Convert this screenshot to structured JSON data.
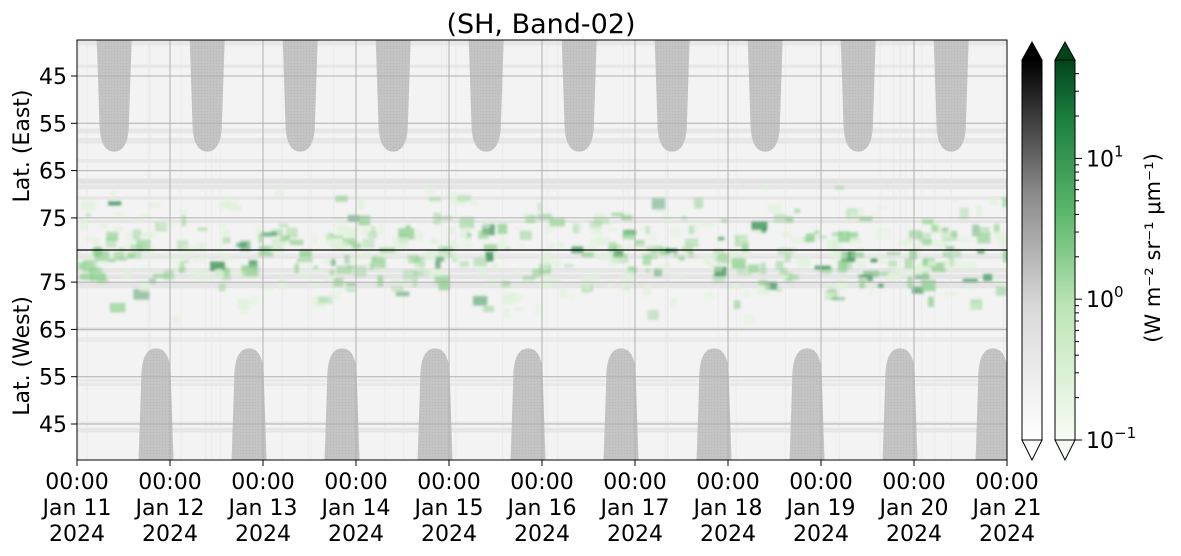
{
  "chart_data": {
    "type": "heatmap",
    "title": "(SH, Band-02)",
    "x": {
      "range": [
        "2024-01-11 00:00",
        "2024-01-21 00:00"
      ],
      "ticks": [
        {
          "time": "00:00",
          "date": "Jan 11",
          "year": "2024"
        },
        {
          "time": "00:00",
          "date": "Jan 12",
          "year": "2024"
        },
        {
          "time": "00:00",
          "date": "Jan 13",
          "year": "2024"
        },
        {
          "time": "00:00",
          "date": "Jan 14",
          "year": "2024"
        },
        {
          "time": "00:00",
          "date": "Jan 15",
          "year": "2024"
        },
        {
          "time": "00:00",
          "date": "Jan 16",
          "year": "2024"
        },
        {
          "time": "00:00",
          "date": "Jan 17",
          "year": "2024"
        },
        {
          "time": "00:00",
          "date": "Jan 18",
          "year": "2024"
        },
        {
          "time": "00:00",
          "date": "Jan 19",
          "year": "2024"
        },
        {
          "time": "00:00",
          "date": "Jan 20",
          "year": "2024"
        },
        {
          "time": "00:00",
          "date": "Jan 21",
          "year": "2024"
        }
      ]
    },
    "panels": {
      "east": {
        "ylabel": "Lat. (East)",
        "ticks": [
          "45",
          "55",
          "65",
          "75"
        ],
        "values": [
          45,
          55,
          65,
          75
        ]
      },
      "west": {
        "ylabel": "Lat. (West)",
        "ticks": [
          "75",
          "65",
          "55",
          "45"
        ],
        "values": [
          75,
          65,
          55,
          45
        ]
      }
    },
    "colorbar": {
      "label": "(W m⁻² sr⁻¹ μm⁻¹)",
      "scale": "log",
      "range": [
        0.1,
        50
      ],
      "ticks": [
        {
          "base": "10",
          "exp": "1",
          "value": 10
        },
        {
          "base": "10",
          "exp": "0",
          "value": 1
        },
        {
          "base": "10",
          "exp": "−1",
          "value": 0.1
        }
      ],
      "extend": "both",
      "colormaps": [
        "Greys",
        "Greens"
      ]
    },
    "grid": true,
    "daylight_blocks": {
      "east_day_offsets": [
        0.4,
        1.4,
        2.4,
        3.4,
        4.4,
        5.4,
        6.4,
        7.4,
        8.4,
        9.4
      ],
      "west_day_offsets": [
        0.85,
        1.85,
        2.85,
        3.85,
        4.85,
        5.85,
        6.85,
        7.85,
        8.85,
        9.85
      ]
    },
    "colors": {
      "daylight": "#c4c4c4",
      "green_low": "#dff2da",
      "green_mid": "#8fd18f",
      "green_high": "#2c8c4b",
      "divider": "#000000",
      "gridline": "#b0b0b0"
    }
  }
}
